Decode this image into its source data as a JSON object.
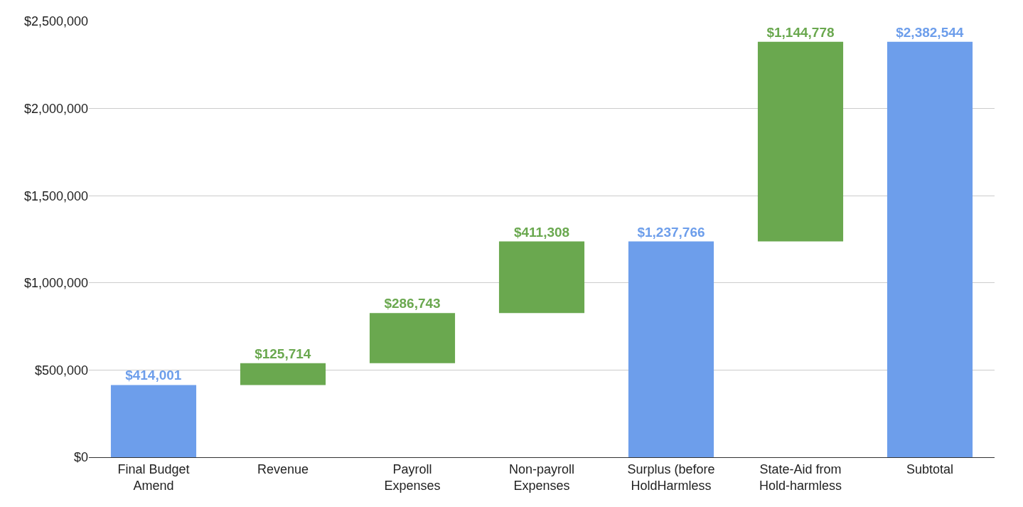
{
  "chart_data": {
    "type": "bar",
    "categories": [
      "Final Budget Amend",
      "Revenue",
      "Payroll Expenses",
      "Non-payroll Expenses",
      "Surplus (before HoldHarmless",
      "State-Aid from Hold-harmless",
      "Subtotal"
    ],
    "values": [
      414001,
      125714,
      286743,
      411308,
      1237766,
      1144778,
      2382544
    ],
    "base": [
      0,
      414001,
      539715,
      826458,
      0,
      1237766,
      0
    ],
    "colors": [
      "#6d9eeb",
      "#6aa84f",
      "#6aa84f",
      "#6aa84f",
      "#6d9eeb",
      "#6aa84f",
      "#6d9eeb"
    ],
    "value_labels": [
      "$414,001",
      "$125,714",
      "$286,743",
      "$411,308",
      "$1,237,766",
      "$1,144,778",
      "$2,382,544"
    ],
    "ylim": [
      0,
      2500000
    ],
    "yticks": [
      {
        "value": 0,
        "label": "$0"
      },
      {
        "value": 500000,
        "label": "$500,000"
      },
      {
        "value": 1000000,
        "label": "$1,000,000"
      },
      {
        "value": 1500000,
        "label": "$1,500,000"
      },
      {
        "value": 2000000,
        "label": "$2,000,000"
      },
      {
        "value": 2500000,
        "label": "$2,500,000"
      }
    ],
    "grid": "y"
  }
}
